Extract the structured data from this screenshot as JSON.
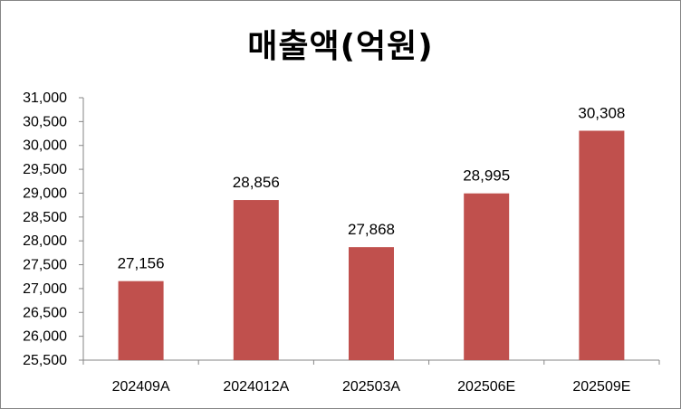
{
  "chart_data": {
    "type": "bar",
    "title": "매출액(억원)",
    "xlabel": "",
    "ylabel": "",
    "categories": [
      "202409A",
      "2024012A",
      "202503A",
      "202506E",
      "202509E"
    ],
    "values": [
      27156,
      28856,
      27868,
      28995,
      30308
    ],
    "data_labels": [
      "27,156",
      "28,856",
      "27,868",
      "28,995",
      "30,308"
    ],
    "ylim": [
      25500,
      31000
    ],
    "yticks": [
      25500,
      26000,
      26500,
      27000,
      27500,
      28000,
      28500,
      29000,
      29500,
      30000,
      30500,
      31000
    ],
    "ytick_labels": [
      "25,500",
      "26,000",
      "26,500",
      "27,000",
      "27,500",
      "28,000",
      "28,500",
      "29,000",
      "29,500",
      "30,000",
      "30,500",
      "31,000"
    ],
    "grid": false,
    "legend": "none",
    "bar_color": "#C0504D"
  }
}
